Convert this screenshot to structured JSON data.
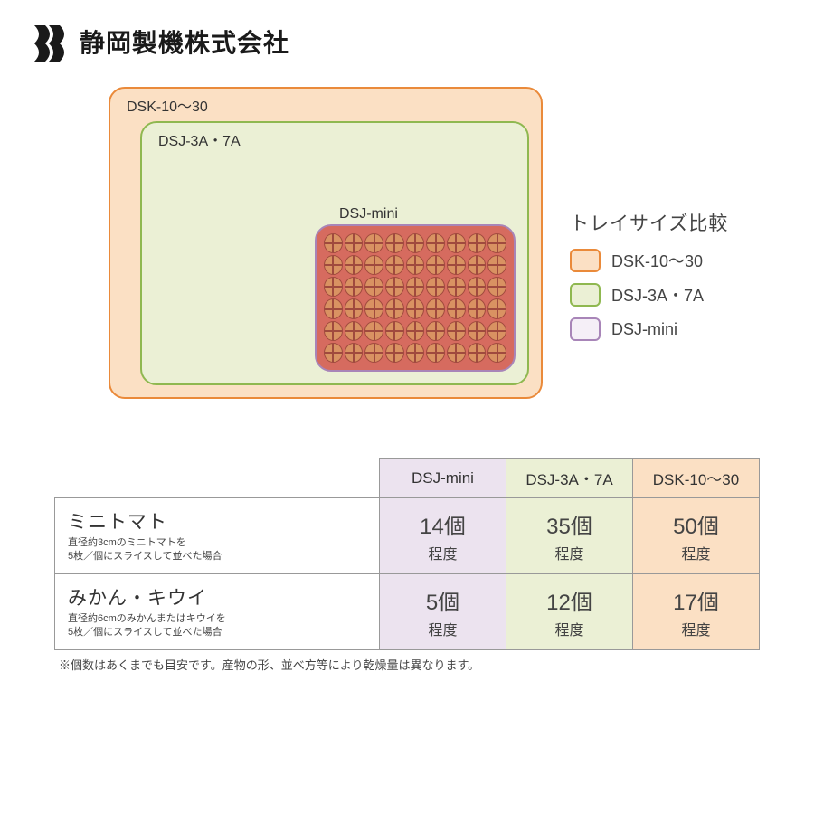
{
  "company_name": "静岡製機株式会社",
  "diagram": {
    "trays": {
      "dsk": {
        "label": "DSK-10～30",
        "fill": "#fbe0c4",
        "border": "#ea8a3a"
      },
      "dsj3a": {
        "label": "DSJ-3A・7A",
        "fill": "#ebf0d5",
        "border": "#8fb850"
      },
      "mini": {
        "label": "DSJ-mini",
        "fill": "#d66b5f",
        "border": "#a885b8",
        "grid_cols": 9,
        "grid_rows": 6
      }
    }
  },
  "legend": {
    "title": "トレイサイズ比較",
    "items": [
      {
        "key": "dsk",
        "label": "DSK-10～30"
      },
      {
        "key": "dsj3a",
        "label": "DSJ-3A・7A"
      },
      {
        "key": "mini",
        "label": "DSJ-mini"
      }
    ]
  },
  "table": {
    "columns": [
      {
        "key": "mini",
        "label": "DSJ-mini",
        "bg": "#ece3ef"
      },
      {
        "key": "3a",
        "label": "DSJ-3A・7A",
        "bg": "#ebf0d5"
      },
      {
        "key": "dsk",
        "label": "DSK-10～30",
        "bg": "#fbe0c4"
      }
    ],
    "rows": [
      {
        "title": "ミニトマト",
        "sub": "直径約3cmのミニトマトを\n5枚／個にスライスして並べた場合",
        "cells": [
          {
            "value": "14個",
            "unit": "程度"
          },
          {
            "value": "35個",
            "unit": "程度"
          },
          {
            "value": "50個",
            "unit": "程度"
          }
        ]
      },
      {
        "title": "みかん・キウイ",
        "sub": "直径約6cmのみかんまたはキウイを\n5枚／個にスライスして並べた場合",
        "cells": [
          {
            "value": "5個",
            "unit": "程度"
          },
          {
            "value": "12個",
            "unit": "程度"
          },
          {
            "value": "17個",
            "unit": "程度"
          }
        ]
      }
    ]
  },
  "footnote": "※個数はあくまでも目安です。産物の形、並べ方等により乾燥量は異なります。",
  "colors": {
    "logo": "#1a1a1a",
    "text": "#333333",
    "border": "#999999"
  }
}
